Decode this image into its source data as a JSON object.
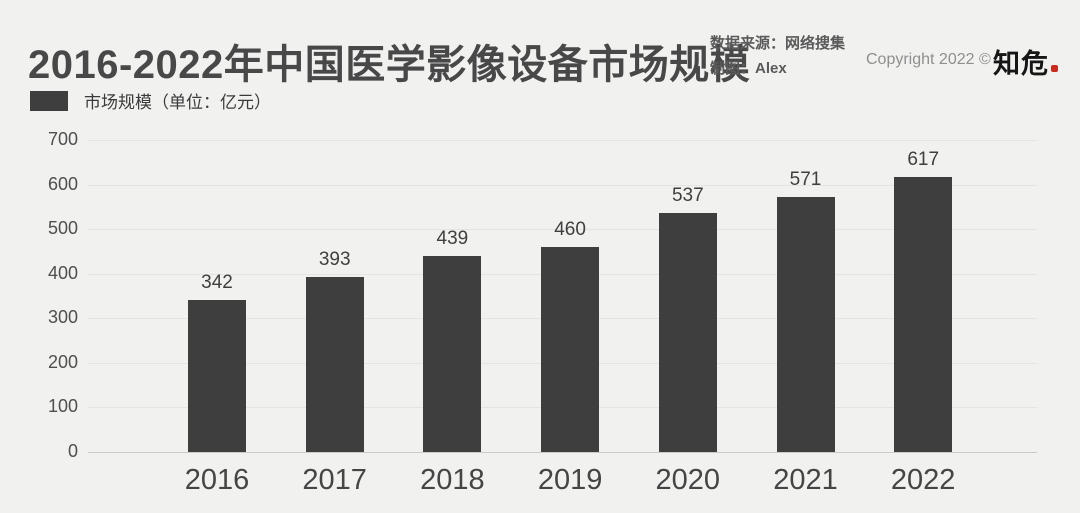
{
  "header": {
    "title": "2016-2022年中国医学影像设备市场规模",
    "source_line1": "数据来源：网络搜集",
    "source_line2": "制图：Alex",
    "copyright": "Copyright 2022 ©",
    "brand": "知危"
  },
  "legend": {
    "label": "市场规模（单位：亿元）"
  },
  "colors": {
    "background": "#f1f1f0",
    "bar": "#3e3e3e",
    "gridline": "#e4e4e3",
    "axis_line": "#c9c9c8",
    "title_text": "#484848",
    "muted_text": "#8f8f8f",
    "brand_dot_red": "#cb2b1d"
  },
  "chart_data": {
    "type": "bar",
    "title": "2016-2022年中国医学影像设备市场规模",
    "categories": [
      "2016",
      "2017",
      "2018",
      "2019",
      "2020",
      "2021",
      "2022"
    ],
    "values": [
      342,
      393,
      439,
      460,
      537,
      571,
      617
    ],
    "series_name": "市场规模",
    "unit": "亿元",
    "xlabel": "",
    "ylabel": "",
    "ylim": [
      0,
      700
    ],
    "yticks": [
      0,
      100,
      200,
      300,
      400,
      500,
      600,
      700
    ],
    "grid": true,
    "bar_labels_shown": true,
    "legend_position": "top-left"
  }
}
